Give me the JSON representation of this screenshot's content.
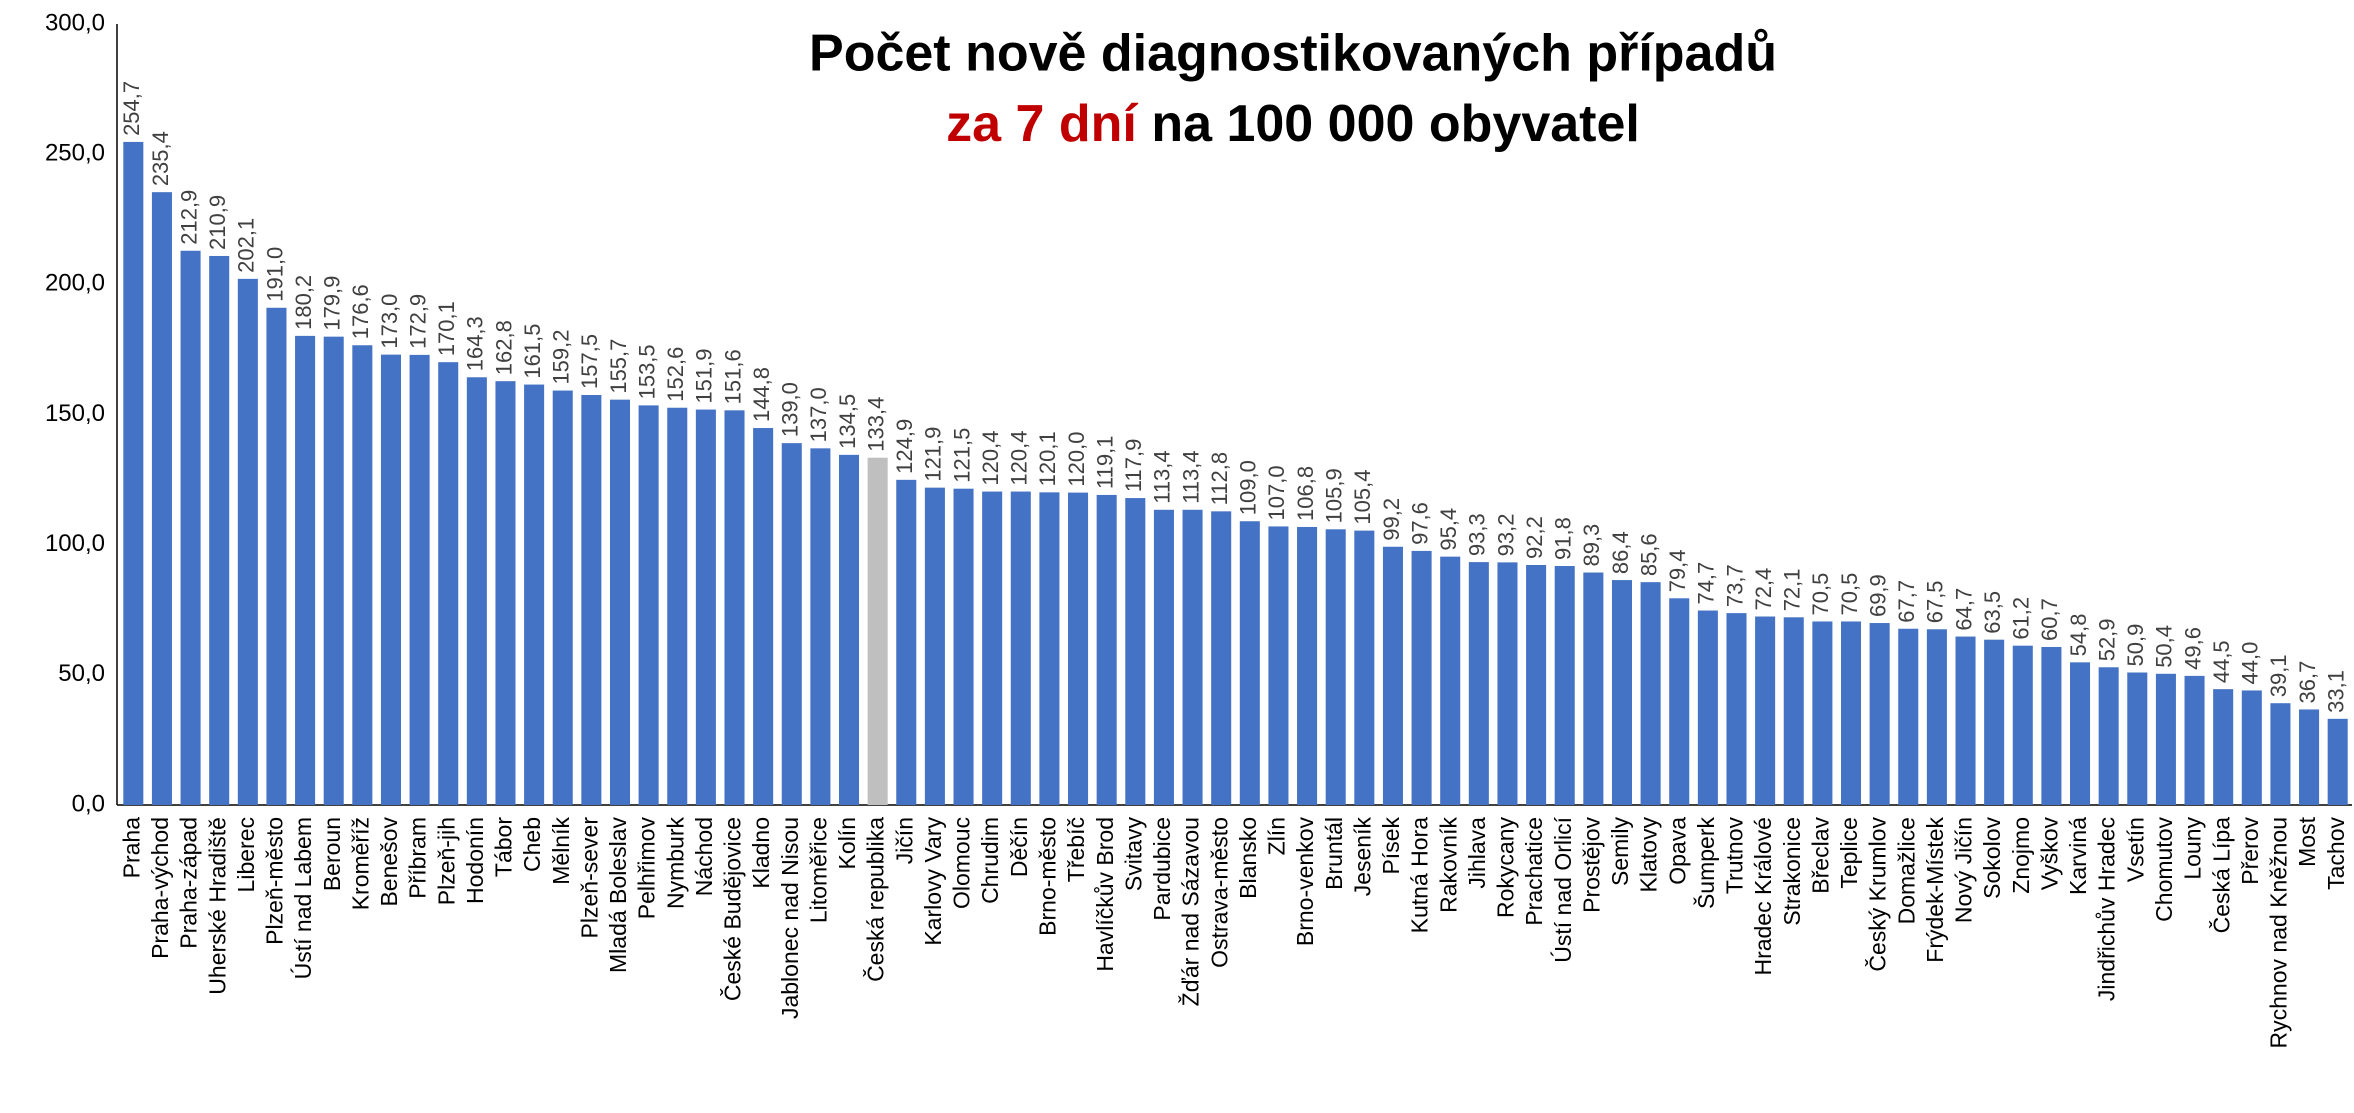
{
  "chart_data": {
    "type": "bar",
    "title": [
      "Počet nově diagnostikovaných případů",
      "za 7 dní",
      "na 100 000 obyvatel"
    ],
    "categories": [
      "Praha",
      "Praha-východ",
      "Praha-západ",
      "Uherské Hradiště",
      "Liberec",
      "Plzeň-město",
      "Ústí nad Labem",
      "Beroun",
      "Kroměříž",
      "Benešov",
      "Příbram",
      "Plzeň-jih",
      "Hodonín",
      "Tábor",
      "Cheb",
      "Mělník",
      "Plzeň-sever",
      "Mladá Boleslav",
      "Pelhřimov",
      "Nymburk",
      "Náchod",
      "České Budějovice",
      "Kladno",
      "Jablonec nad Nisou",
      "Litoměřice",
      "Kolín",
      "Česká republika",
      "Jičín",
      "Karlovy Vary",
      "Olomouc",
      "Chrudim",
      "Děčín",
      "Brno-město",
      "Třebíč",
      "Havlíčkův Brod",
      "Svitavy",
      "Pardubice",
      "Žďár nad Sázavou",
      "Ostrava-město",
      "Blansko",
      "Zlín",
      "Brno-venkov",
      "Bruntál",
      "Jeseník",
      "Písek",
      "Kutná Hora",
      "Rakovník",
      "Jihlava",
      "Rokycany",
      "Prachatice",
      "Ústí nad Orlicí",
      "Prostějov",
      "Semily",
      "Klatovy",
      "Opava",
      "Šumperk",
      "Trutnov",
      "Hradec Králové",
      "Strakonice",
      "Břeclav",
      "Teplice",
      "Český Krumlov",
      "Domažlice",
      "Frýdek-Místek",
      "Nový Jičín",
      "Sokolov",
      "Znojmo",
      "Vyškov",
      "Karviná",
      "Jindřichův Hradec",
      "Vsetín",
      "Chomutov",
      "Louny",
      "Česká Lípa",
      "Přerov",
      "Rychnov nad Kněžnou",
      "Most",
      "Tachov"
    ],
    "values": [
      254.7,
      235.4,
      212.9,
      210.9,
      202.1,
      191.0,
      180.2,
      179.9,
      176.6,
      173.0,
      172.9,
      170.1,
      164.3,
      162.8,
      161.5,
      159.2,
      157.5,
      155.7,
      153.5,
      152.6,
      151.9,
      151.6,
      144.8,
      139.0,
      137.0,
      134.5,
      133.4,
      124.9,
      121.9,
      121.5,
      120.4,
      120.4,
      120.1,
      120.0,
      119.1,
      117.9,
      113.4,
      113.4,
      112.8,
      109.0,
      107.0,
      106.8,
      105.9,
      105.4,
      99.2,
      97.6,
      95.4,
      93.3,
      93.2,
      92.2,
      91.8,
      89.3,
      86.4,
      85.6,
      79.4,
      74.7,
      73.7,
      72.4,
      72.1,
      70.5,
      70.5,
      69.9,
      67.7,
      67.5,
      64.7,
      63.5,
      61.2,
      60.7,
      54.8,
      52.9,
      50.9,
      50.4,
      49.6,
      44.5,
      44.0,
      39.1,
      36.7,
      33.1
    ],
    "value_labels": [
      "254,7",
      "235,4",
      "212,9",
      "210,9",
      "202,1",
      "191,0",
      "180,2",
      "179,9",
      "176,6",
      "173,0",
      "172,9",
      "170,1",
      "164,3",
      "162,8",
      "161,5",
      "159,2",
      "157,5",
      "155,7",
      "153,5",
      "152,6",
      "151,9",
      "151,6",
      "144,8",
      "139,0",
      "137,0",
      "134,5",
      "133,4",
      "124,9",
      "121,9",
      "121,5",
      "120,4",
      "120,4",
      "120,1",
      "120,0",
      "119,1",
      "117,9",
      "113,4",
      "113,4",
      "112,8",
      "109,0",
      "107,0",
      "106,8",
      "105,9",
      "105,4",
      "99,2",
      "97,6",
      "95,4",
      "93,3",
      "93,2",
      "92,2",
      "91,8",
      "89,3",
      "86,4",
      "85,6",
      "79,4",
      "74,7",
      "73,7",
      "72,4",
      "72,1",
      "70,5",
      "70,5",
      "69,9",
      "67,7",
      "67,5",
      "64,7",
      "63,5",
      "61,2",
      "60,7",
      "54,8",
      "52,9",
      "50,9",
      "50,4",
      "49,6",
      "44,5",
      "44,0",
      "39,1",
      "36,7",
      "33,1"
    ],
    "colors": [
      "#4472c4",
      "#4472c4",
      "#4472c4",
      "#4472c4",
      "#4472c4",
      "#4472c4",
      "#4472c4",
      "#4472c4",
      "#4472c4",
      "#4472c4",
      "#4472c4",
      "#4472c4",
      "#4472c4",
      "#4472c4",
      "#4472c4",
      "#4472c4",
      "#4472c4",
      "#4472c4",
      "#4472c4",
      "#4472c4",
      "#4472c4",
      "#4472c4",
      "#4472c4",
      "#4472c4",
      "#4472c4",
      "#4472c4",
      "#bfbfbf",
      "#4472c4",
      "#4472c4",
      "#4472c4",
      "#4472c4",
      "#4472c4",
      "#4472c4",
      "#4472c4",
      "#4472c4",
      "#4472c4",
      "#4472c4",
      "#4472c4",
      "#4472c4",
      "#4472c4",
      "#4472c4",
      "#4472c4",
      "#4472c4",
      "#4472c4",
      "#4472c4",
      "#4472c4",
      "#4472c4",
      "#4472c4",
      "#4472c4",
      "#4472c4",
      "#4472c4",
      "#4472c4",
      "#4472c4",
      "#4472c4",
      "#4472c4",
      "#4472c4",
      "#4472c4",
      "#4472c4",
      "#4472c4",
      "#4472c4",
      "#4472c4",
      "#4472c4",
      "#4472c4",
      "#4472c4",
      "#4472c4",
      "#4472c4",
      "#4472c4",
      "#4472c4",
      "#4472c4",
      "#4472c4",
      "#4472c4",
      "#4472c4",
      "#4472c4",
      "#4472c4",
      "#4472c4",
      "#4472c4",
      "#4472c4",
      "#4472c4"
    ],
    "ylim": [
      0,
      300
    ],
    "yticks": [
      {
        "value": 0,
        "label": "0,0"
      },
      {
        "value": 50,
        "label": "50,0"
      },
      {
        "value": 100,
        "label": "100,0"
      },
      {
        "value": 150,
        "label": "150,0"
      },
      {
        "value": 200,
        "label": "200,0"
      },
      {
        "value": 250,
        "label": "250,0"
      },
      {
        "value": 300,
        "label": "300,0"
      }
    ],
    "grid": false
  }
}
